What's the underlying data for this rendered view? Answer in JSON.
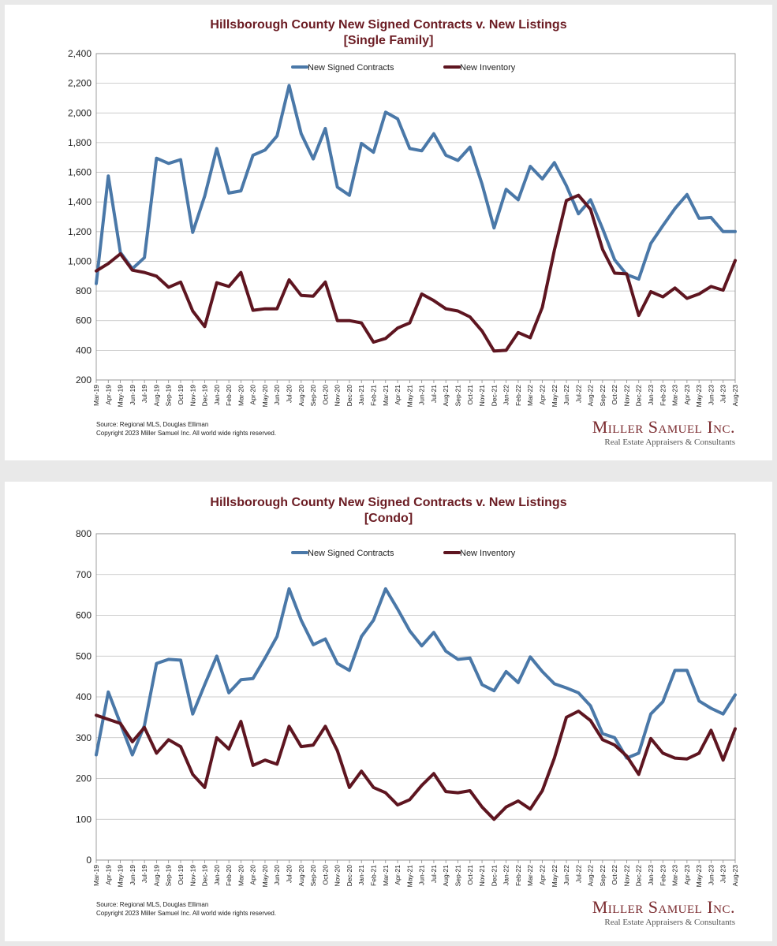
{
  "charts_meta": {
    "brand_name": "Miller Samuel Inc.",
    "brand_tagline": "Real Estate Appraisers & Consultants",
    "source_line": "Source: Regional MLS, Douglas Elliman",
    "copyright_line": "Copyright 2023 Miller Samuel Inc.  All world wide rights reserved."
  },
  "chart_data": [
    {
      "type": "line",
      "title": "Hillsborough County New Signed Contracts v. New Listings",
      "subtitle": "[Single Family]",
      "ylim": [
        200,
        2400
      ],
      "yticks": [
        200,
        400,
        600,
        800,
        1000,
        1200,
        1400,
        1600,
        1800,
        2000,
        2200,
        2400
      ],
      "ytick_labels": [
        "200",
        "400",
        "600",
        "800",
        "1,000",
        "1,200",
        "1,400",
        "1,600",
        "1,800",
        "2,000",
        "2,200",
        "2,400"
      ],
      "grid": true,
      "legend_position": "top",
      "categories": [
        "Mar-19",
        "Apr-19",
        "May-19",
        "Jun-19",
        "Jul-19",
        "Aug-19",
        "Sep-19",
        "Oct-19",
        "Nov-19",
        "Dec-19",
        "Jan-20",
        "Feb-20",
        "Mar-20",
        "Apr-20",
        "May-20",
        "Jun-20",
        "Jul-20",
        "Aug-20",
        "Sep-20",
        "Oct-20",
        "Nov-20",
        "Dec-20",
        "Jan-21",
        "Feb-21",
        "Mar-21",
        "Apr-21",
        "May-21",
        "Jun-21",
        "Jul-21",
        "Aug-21",
        "Sep-21",
        "Oct-21",
        "Nov-21",
        "Dec-21",
        "Jan-22",
        "Feb-22",
        "Mar-22",
        "Apr-22",
        "May-22",
        "Jun-22",
        "Jul-22",
        "Aug-22",
        "Sep-22",
        "Oct-22",
        "Nov-22",
        "Dec-22",
        "Jan-23",
        "Feb-23",
        "Mar-23",
        "Apr-23",
        "May-23",
        "Jun-23",
        "Jul-23",
        "Aug-23"
      ],
      "series": [
        {
          "name": "New Signed Contracts",
          "color": "#4a78a8",
          "values": [
            850,
            1575,
            1060,
            950,
            1025,
            1695,
            1660,
            1685,
            1195,
            1440,
            1760,
            1460,
            1475,
            1715,
            1750,
            1845,
            2185,
            1860,
            1690,
            1895,
            1500,
            1445,
            1795,
            1735,
            2005,
            1960,
            1760,
            1745,
            1860,
            1715,
            1680,
            1770,
            1520,
            1225,
            1485,
            1415,
            1640,
            1555,
            1665,
            1510,
            1320,
            1415,
            1220,
            1010,
            910,
            880,
            1120,
            1240,
            1355,
            1450,
            1290,
            1295,
            1200,
            1200
          ]
        },
        {
          "name": "New Inventory",
          "color": "#5e1520",
          "values": [
            935,
            985,
            1050,
            940,
            925,
            900,
            825,
            860,
            665,
            560,
            855,
            830,
            925,
            670,
            680,
            680,
            875,
            770,
            765,
            860,
            600,
            600,
            585,
            455,
            480,
            550,
            585,
            780,
            735,
            680,
            665,
            625,
            530,
            395,
            400,
            520,
            485,
            690,
            1075,
            1410,
            1445,
            1350,
            1080,
            920,
            915,
            635,
            795,
            760,
            820,
            750,
            780,
            830,
            805,
            1005
          ]
        }
      ]
    },
    {
      "type": "line",
      "title": "Hillsborough County New Signed Contracts v. New Listings",
      "subtitle": "[Condo]",
      "ylim": [
        0,
        800
      ],
      "yticks": [
        0,
        100,
        200,
        300,
        400,
        500,
        600,
        700,
        800
      ],
      "ytick_labels": [
        "0",
        "100",
        "200",
        "300",
        "400",
        "500",
        "600",
        "700",
        "800"
      ],
      "grid": true,
      "legend_position": "top",
      "categories": [
        "Mar-19",
        "Apr-19",
        "May-19",
        "Jun-19",
        "Jul-19",
        "Aug-19",
        "Sep-19",
        "Oct-19",
        "Nov-19",
        "Dec-19",
        "Jan-20",
        "Feb-20",
        "Mar-20",
        "Apr-20",
        "May-20",
        "Jun-20",
        "Jul-20",
        "Aug-20",
        "Sep-20",
        "Oct-20",
        "Nov-20",
        "Dec-20",
        "Jan-21",
        "Feb-21",
        "Mar-21",
        "Apr-21",
        "May-21",
        "Jun-21",
        "Jul-21",
        "Aug-21",
        "Sep-21",
        "Oct-21",
        "Nov-21",
        "Dec-21",
        "Jan-22",
        "Feb-22",
        "Mar-22",
        "Apr-22",
        "May-22",
        "Jun-22",
        "Jul-22",
        "Aug-22",
        "Sep-22",
        "Oct-22",
        "Nov-22",
        "Dec-22",
        "Jan-23",
        "Feb-23",
        "Mar-23",
        "Apr-23",
        "May-23",
        "Jun-23",
        "Jul-23",
        "Aug-23"
      ],
      "series": [
        {
          "name": "New Signed Contracts",
          "color": "#4a78a8",
          "values": [
            258,
            412,
            335,
            258,
            330,
            482,
            492,
            490,
            358,
            430,
            500,
            410,
            442,
            445,
            495,
            548,
            665,
            588,
            528,
            542,
            482,
            465,
            548,
            588,
            665,
            615,
            562,
            525,
            558,
            512,
            492,
            495,
            430,
            415,
            462,
            435,
            498,
            462,
            432,
            422,
            410,
            378,
            310,
            300,
            250,
            262,
            358,
            388,
            465,
            465,
            390,
            372,
            358,
            405
          ]
        },
        {
          "name": "New Inventory",
          "color": "#5e1520",
          "values": [
            355,
            345,
            335,
            290,
            325,
            262,
            295,
            278,
            210,
            178,
            300,
            272,
            340,
            232,
            245,
            235,
            328,
            278,
            282,
            328,
            268,
            178,
            218,
            178,
            165,
            135,
            148,
            183,
            212,
            168,
            165,
            170,
            130,
            100,
            130,
            145,
            125,
            170,
            250,
            350,
            365,
            342,
            295,
            282,
            255,
            210,
            298,
            262,
            250,
            248,
            262,
            318,
            245,
            322
          ]
        }
      ]
    }
  ]
}
